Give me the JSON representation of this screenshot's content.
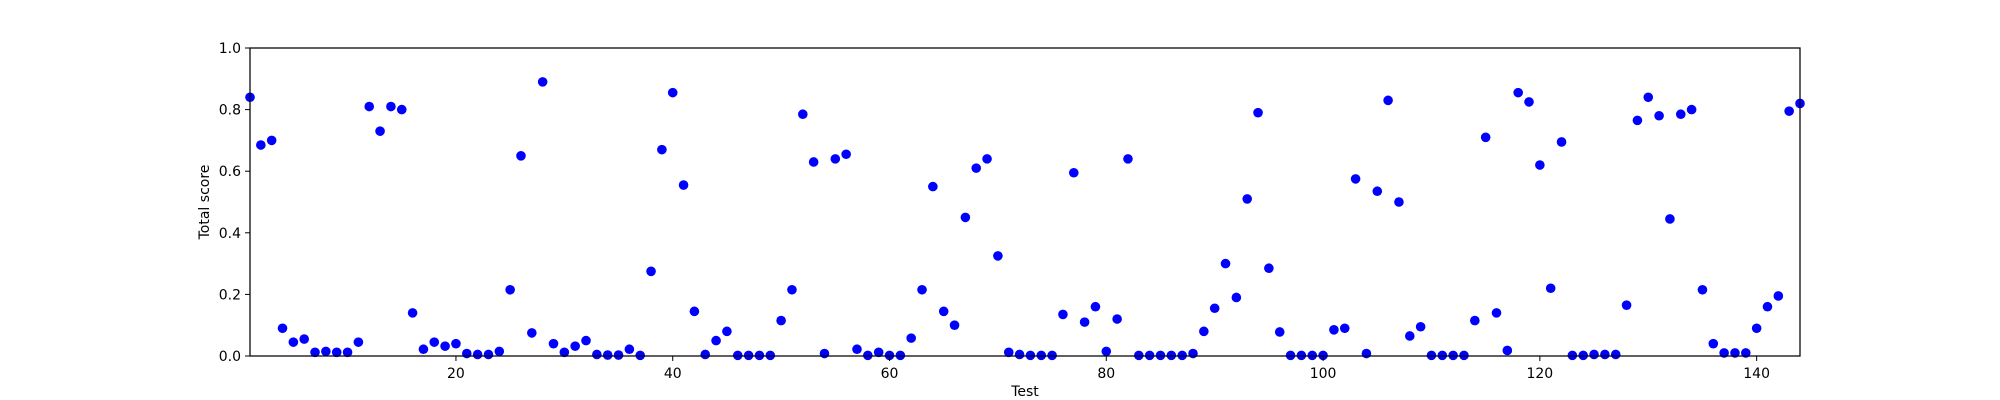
{
  "chart_data": {
    "type": "scatter",
    "title": "",
    "xlabel": "Test",
    "ylabel": "Total score",
    "xlim": [
      1,
      144
    ],
    "ylim": [
      0,
      1.0
    ],
    "xticks": [
      20,
      40,
      60,
      80,
      100,
      120,
      140
    ],
    "yticks": [
      0.0,
      0.2,
      0.4,
      0.6,
      0.8,
      1.0
    ],
    "grid": false,
    "marker_color": "#0000ff",
    "series": [
      {
        "x": [
          1,
          2,
          3,
          4,
          5,
          6,
          7,
          8,
          9,
          10,
          11,
          12,
          13,
          14,
          15,
          16,
          17,
          18,
          19,
          20,
          21,
          22,
          23,
          24,
          25,
          26,
          27,
          28,
          29,
          30,
          31,
          32,
          33,
          34,
          35,
          36,
          37,
          38,
          39,
          40,
          41,
          42,
          43,
          44,
          45,
          46,
          47,
          48,
          49,
          50,
          51,
          52,
          53,
          54,
          55,
          56,
          57,
          58,
          59,
          60,
          61,
          62,
          63,
          64,
          65,
          66,
          67,
          68,
          69,
          70,
          71,
          72,
          73,
          74,
          75,
          76,
          77,
          78,
          79,
          80,
          81,
          82,
          83,
          84,
          85,
          86,
          87,
          88,
          89,
          90,
          91,
          92,
          93,
          94,
          95,
          96,
          97,
          98,
          99,
          100,
          101,
          102,
          103,
          104,
          105,
          106,
          107,
          108,
          109,
          110,
          111,
          112,
          113,
          114,
          115,
          116,
          117,
          118,
          119,
          120,
          121,
          122,
          123,
          124,
          125,
          126,
          127,
          128,
          129,
          130,
          131,
          132,
          133,
          134,
          135,
          136,
          137,
          138,
          139,
          140,
          141,
          142,
          143,
          144
        ],
        "y": [
          0.84,
          0.685,
          0.7,
          0.09,
          0.045,
          0.055,
          0.012,
          0.015,
          0.012,
          0.012,
          0.045,
          0.81,
          0.73,
          0.81,
          0.8,
          0.14,
          0.022,
          0.045,
          0.032,
          0.04,
          0.008,
          0.005,
          0.005,
          0.015,
          0.215,
          0.65,
          0.075,
          0.89,
          0.04,
          0.012,
          0.032,
          0.05,
          0.005,
          0.003,
          0.003,
          0.022,
          0.002,
          0.275,
          0.67,
          0.855,
          0.555,
          0.145,
          0.005,
          0.05,
          0.08,
          0.002,
          0.002,
          0.002,
          0.002,
          0.115,
          0.215,
          0.785,
          0.63,
          0.008,
          0.64,
          0.655,
          0.022,
          0.002,
          0.012,
          0.002,
          0.002,
          0.058,
          0.215,
          0.55,
          0.145,
          0.1,
          0.45,
          0.61,
          0.64,
          0.325,
          0.012,
          0.005,
          0.002,
          0.002,
          0.002,
          0.135,
          0.595,
          0.11,
          0.16,
          0.015,
          0.12,
          0.64,
          0.002,
          0.002,
          0.002,
          0.002,
          0.002,
          0.008,
          0.08,
          0.155,
          0.3,
          0.19,
          0.51,
          0.79,
          0.285,
          0.078,
          0.002,
          0.002,
          0.002,
          0.002,
          0.085,
          0.09,
          0.575,
          0.008,
          0.535,
          0.83,
          0.5,
          0.065,
          0.095,
          0.002,
          0.002,
          0.002,
          0.002,
          0.115,
          0.71,
          0.14,
          0.018,
          0.855,
          0.825,
          0.62,
          0.22,
          0.695,
          0.002,
          0.002,
          0.005,
          0.005,
          0.005,
          0.165,
          0.765,
          0.84,
          0.78,
          0.445,
          0.785,
          0.8,
          0.215,
          0.04,
          0.01,
          0.01,
          0.01,
          0.09,
          0.16,
          0.195,
          0.795,
          0.82
        ]
      }
    ]
  }
}
